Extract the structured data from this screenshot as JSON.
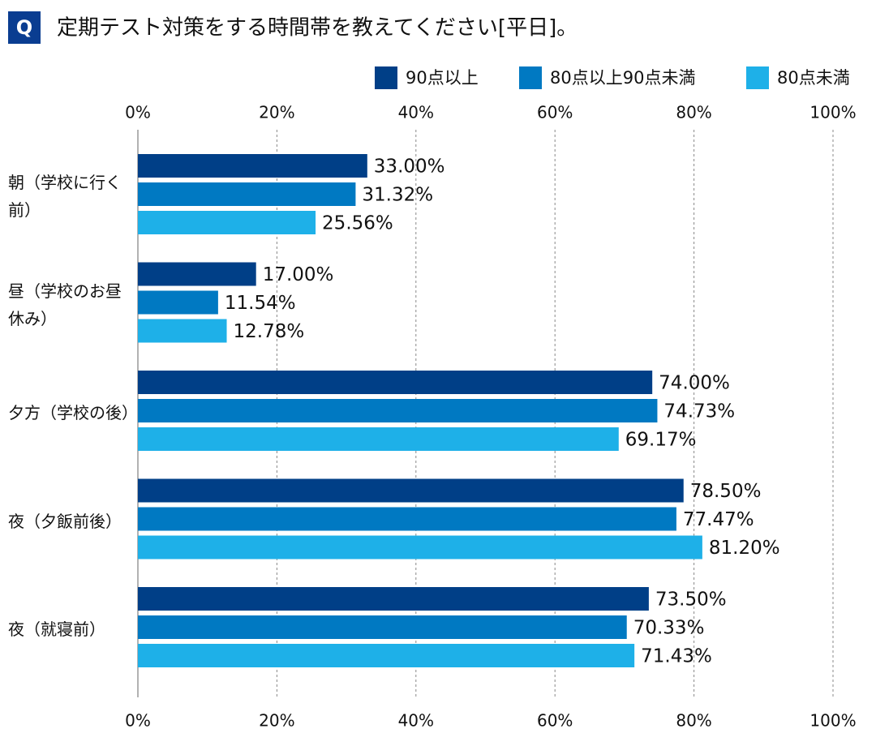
{
  "chart_data": {
    "type": "bar",
    "orientation": "horizontal",
    "badge": "Q",
    "title": "定期テスト対策をする時間帯を教えてください[平日]。",
    "categories": [
      "朝（学校に行く前）",
      "昼（学校のお昼休み）",
      "夕方（学校の後）",
      "夜（夕飯前後）",
      "夜（就寝前）"
    ],
    "series": [
      {
        "name": "90点以上",
        "color": "#003f87",
        "values": [
          33.0,
          17.0,
          74.0,
          78.5,
          73.5
        ],
        "value_labels": [
          "33.00%",
          "17.00%",
          "74.00%",
          "78.50%",
          "73.50%"
        ]
      },
      {
        "name": "80点以上90点未満",
        "color": "#0079c2",
        "values": [
          31.32,
          11.54,
          74.73,
          77.47,
          70.33
        ],
        "value_labels": [
          "31.32%",
          "11.54%",
          "74.73%",
          "77.47%",
          "70.33%"
        ]
      },
      {
        "name": "80点未満",
        "color": "#1eb0e8",
        "values": [
          25.56,
          12.78,
          69.17,
          81.2,
          71.43
        ],
        "value_labels": [
          "25.56%",
          "12.78%",
          "69.17%",
          "81.20%",
          "71.43%"
        ]
      }
    ],
    "xlim": [
      0,
      100
    ],
    "xticks": [
      {
        "value": 0,
        "label": "0%"
      },
      {
        "value": 20,
        "label": "20%"
      },
      {
        "value": 40,
        "label": "40%"
      },
      {
        "value": 60,
        "label": "60%"
      },
      {
        "value": 80,
        "label": "80%"
      },
      {
        "value": 100,
        "label": "100%"
      }
    ],
    "grid": true,
    "legend": "top-right"
  }
}
